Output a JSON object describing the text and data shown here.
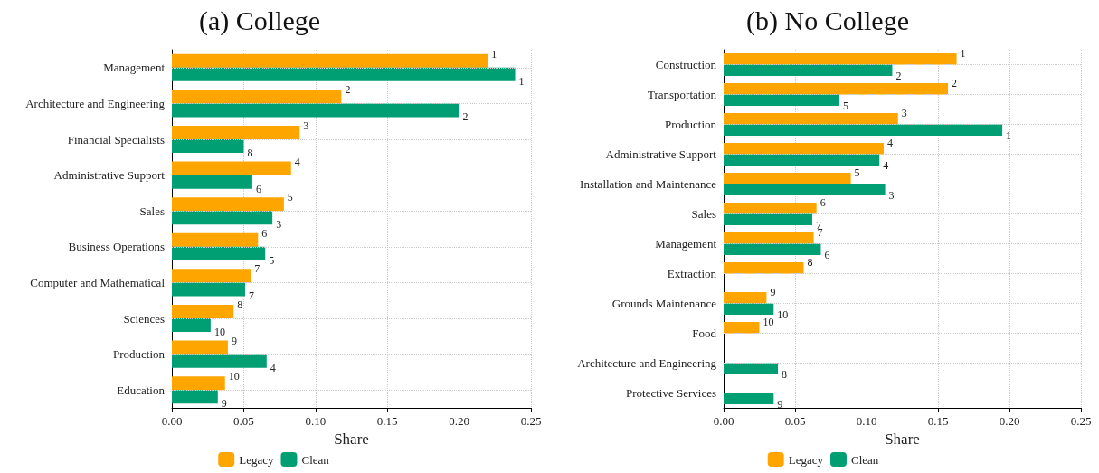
{
  "chart_data": [
    {
      "type": "bar",
      "orientation": "horizontal",
      "title": "(a) College",
      "xlabel": "Share",
      "categories": [
        "Management",
        "Architecture and Engineering",
        "Financial Specialists",
        "Administrative Support",
        "Sales",
        "Business Operations",
        "Computer and Mathematical",
        "Sciences",
        "Production",
        "Education"
      ],
      "series": [
        {
          "name": "Legacy",
          "color": "#ffa500",
          "values": [
            0.22,
            0.118,
            0.089,
            0.083,
            0.078,
            0.06,
            0.055,
            0.043,
            0.039,
            0.037
          ]
        },
        {
          "name": "Clean",
          "color": "#009e73",
          "values": [
            0.239,
            0.2,
            0.05,
            0.056,
            0.07,
            0.065,
            0.051,
            0.027,
            0.066,
            0.032
          ]
        }
      ],
      "annotations": [
        {
          "text": "1",
          "x": 0.22,
          "y": "Management"
        },
        {
          "text": "1",
          "x": 0.239,
          "y": "Management"
        },
        {
          "text": "2",
          "x": 0.118,
          "y": "Architecture and Engineering"
        },
        {
          "text": "2",
          "x": 0.2,
          "y": "Architecture and Engineering"
        },
        {
          "text": "3",
          "x": 0.089,
          "y": "Financial Specialists"
        },
        {
          "text": "8",
          "x": 0.05,
          "y": "Financial Specialists"
        },
        {
          "text": "4",
          "x": 0.083,
          "y": "Administrative Support"
        },
        {
          "text": "6",
          "x": 0.056,
          "y": "Administrative Support"
        },
        {
          "text": "5",
          "x": 0.078,
          "y": "Sales"
        },
        {
          "text": "3",
          "x": 0.07,
          "y": "Sales"
        },
        {
          "text": "6",
          "x": 0.06,
          "y": "Business Operations"
        },
        {
          "text": "5",
          "x": 0.065,
          "y": "Business Operations"
        },
        {
          "text": "7",
          "x": 0.055,
          "y": "Computer and Mathematical"
        },
        {
          "text": "7",
          "x": 0.051,
          "y": "Computer and Mathematical"
        },
        {
          "text": "8",
          "x": 0.043,
          "y": "Sciences"
        },
        {
          "text": "10",
          "x": 0.027,
          "y": "Sciences"
        },
        {
          "text": "9",
          "x": 0.039,
          "y": "Production"
        },
        {
          "text": "4",
          "x": 0.066,
          "y": "Production"
        },
        {
          "text": "10",
          "x": 0.037,
          "y": "Education"
        },
        {
          "text": "9",
          "x": 0.032,
          "y": "Education"
        }
      ],
      "xlim": [
        0,
        0.25
      ],
      "xticks": [
        {
          "value": 0,
          "label": "0.00"
        },
        {
          "value": 0.05,
          "label": "0.05"
        },
        {
          "value": 0.1,
          "label": "0.10"
        },
        {
          "value": 0.15,
          "label": "0.15"
        },
        {
          "value": 0.2,
          "label": "0.20"
        },
        {
          "value": 0.25,
          "label": "0.25"
        }
      ],
      "grid": true,
      "legend": "bottom"
    },
    {
      "type": "bar",
      "orientation": "horizontal",
      "title": "(b) No College",
      "xlabel": "Share",
      "categories": [
        "Construction",
        "Transportation",
        "Production",
        "Administrative Support",
        "Installation and Maintenance",
        "Sales",
        "Management",
        "Extraction",
        "Grounds Maintenance",
        "Food",
        "Architecture and Engineering",
        "Protective Services"
      ],
      "series": [
        {
          "name": "Legacy",
          "color": "#ffa500",
          "values": [
            0.163,
            0.157,
            0.122,
            0.112,
            0.089,
            0.065,
            0.063,
            0.056,
            0.03,
            0.025,
            null,
            null
          ]
        },
        {
          "name": "Clean",
          "color": "#009e73",
          "values": [
            0.118,
            0.081,
            0.195,
            0.109,
            0.113,
            0.062,
            0.068,
            null,
            0.035,
            null,
            0.038,
            0.035
          ]
        }
      ],
      "annotations": [
        {
          "text": "1",
          "x": 0.163,
          "y": "Construction"
        },
        {
          "text": "2",
          "x": 0.118,
          "y": "Construction"
        },
        {
          "text": "2",
          "x": 0.157,
          "y": "Transportation"
        },
        {
          "text": "5",
          "x": 0.081,
          "y": "Transportation"
        },
        {
          "text": "3",
          "x": 0.122,
          "y": "Production"
        },
        {
          "text": "1",
          "x": 0.195,
          "y": "Production"
        },
        {
          "text": "4",
          "x": 0.112,
          "y": "Administrative Support"
        },
        {
          "text": "4",
          "x": 0.109,
          "y": "Administrative Support"
        },
        {
          "text": "5",
          "x": 0.089,
          "y": "Installation and Maintenance"
        },
        {
          "text": "3",
          "x": 0.113,
          "y": "Installation and Maintenance"
        },
        {
          "text": "6",
          "x": 0.065,
          "y": "Sales"
        },
        {
          "text": "7",
          "x": 0.062,
          "y": "Sales"
        },
        {
          "text": "7",
          "x": 0.063,
          "y": "Management"
        },
        {
          "text": "6",
          "x": 0.068,
          "y": "Management"
        },
        {
          "text": "8",
          "x": 0.056,
          "y": "Extraction"
        },
        {
          "text": "9",
          "x": 0.03,
          "y": "Grounds Maintenance"
        },
        {
          "text": "10",
          "x": 0.035,
          "y": "Grounds Maintenance"
        },
        {
          "text": "10",
          "x": 0.025,
          "y": "Food"
        },
        {
          "text": "8",
          "x": 0.038,
          "y": "Architecture and Engineering"
        },
        {
          "text": "9",
          "x": 0.035,
          "y": "Protective Services"
        }
      ],
      "xlim": [
        0,
        0.25
      ],
      "xticks": [
        {
          "value": 0,
          "label": "0.00"
        },
        {
          "value": 0.05,
          "label": "0.05"
        },
        {
          "value": 0.1,
          "label": "0.10"
        },
        {
          "value": 0.15,
          "label": "0.15"
        },
        {
          "value": 0.2,
          "label": "0.20"
        },
        {
          "value": 0.25,
          "label": "0.25"
        }
      ],
      "grid": true,
      "legend": "bottom"
    }
  ]
}
